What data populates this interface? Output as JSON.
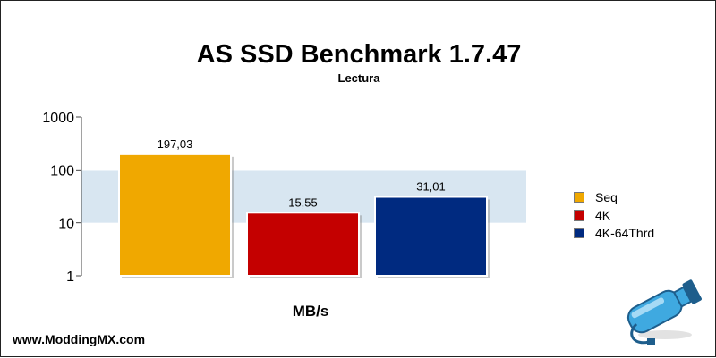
{
  "chart_data": {
    "type": "bar",
    "title": "AS SSD Benchmark 1.7.47",
    "subtitle": "Lectura",
    "xlabel": "MB/s",
    "ylabel": "",
    "yscale": "log",
    "ylim": [
      1,
      1000
    ],
    "yticks": [
      "1",
      "10",
      "100",
      "1000"
    ],
    "grid": true,
    "legend_position": "right",
    "series": [
      {
        "name": "Seq",
        "value": 197.03,
        "label": "197,03",
        "color": "#F0A800"
      },
      {
        "name": "4K",
        "value": 15.55,
        "label": "15,55",
        "color": "#C40000"
      },
      {
        "name": "4K-64Thrd",
        "value": 31.01,
        "label": "31,01",
        "color": "#002A80"
      }
    ]
  },
  "footer": {
    "website": "www.ModdingMX.com"
  },
  "logo_icon": "usb-bottle-icon"
}
